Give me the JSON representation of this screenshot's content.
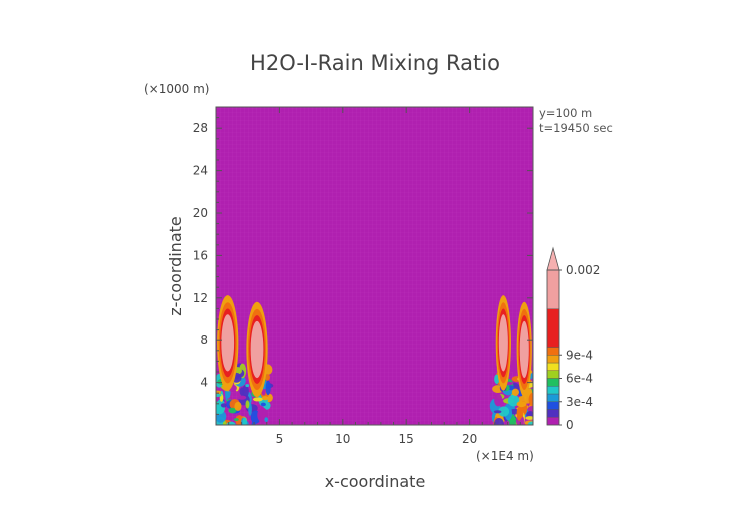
{
  "chart_data": {
    "type": "heatmap",
    "title": "H2O-I-Rain Mixing Ratio",
    "xlabel": "x-coordinate",
    "ylabel": "z-coordinate",
    "x_unit": "(×1E4 m)",
    "y_unit": "(×1000 m)",
    "xlim": [
      0,
      25
    ],
    "ylim": [
      0,
      30
    ],
    "x_ticks": [
      5,
      10,
      15,
      20
    ],
    "y_ticks": [
      4,
      8,
      12,
      16,
      20,
      24,
      28
    ],
    "annotations": [
      "y=100 m",
      "t=19450 sec"
    ],
    "background_level": 0,
    "colorbar": {
      "tick_values": [
        0,
        0.0003,
        0.0006,
        0.0009,
        0.002
      ],
      "tick_labels": [
        "0",
        "3e-4",
        "6e-4",
        "9e-4",
        "0.002"
      ],
      "levels": [
        {
          "min": 0,
          "max": 0.0001,
          "color": "#b020b0"
        },
        {
          "min": 0.0001,
          "max": 0.0002,
          "color": "#5030c0"
        },
        {
          "min": 0.0002,
          "max": 0.0003,
          "color": "#2050e0"
        },
        {
          "min": 0.0003,
          "max": 0.0004,
          "color": "#1a9ad8"
        },
        {
          "min": 0.0004,
          "max": 0.0005,
          "color": "#20c8c8"
        },
        {
          "min": 0.0005,
          "max": 0.0006,
          "color": "#20c060"
        },
        {
          "min": 0.0006,
          "max": 0.0007,
          "color": "#a0d020"
        },
        {
          "min": 0.0007,
          "max": 0.0008,
          "color": "#f0e020"
        },
        {
          "min": 0.0008,
          "max": 0.0009,
          "color": "#f0a010"
        },
        {
          "min": 0.0009,
          "max": 0.001,
          "color": "#f07010"
        },
        {
          "min": 0.001,
          "max": 0.0015,
          "color": "#e82020"
        },
        {
          "min": 0.0015,
          "max": 0.002,
          "color": "#f0a0a0"
        }
      ],
      "overflow_color": "#f5b0b0"
    },
    "features": [
      {
        "name": "left-storm-cells",
        "x_range": [
          0,
          4.2
        ],
        "z_range": [
          0,
          12.5
        ],
        "peak_value": 0.0015
      },
      {
        "name": "right-storm-cells",
        "x_range": [
          22,
          25
        ],
        "z_range": [
          0,
          12.5
        ],
        "peak_value": 0.0015
      }
    ]
  }
}
